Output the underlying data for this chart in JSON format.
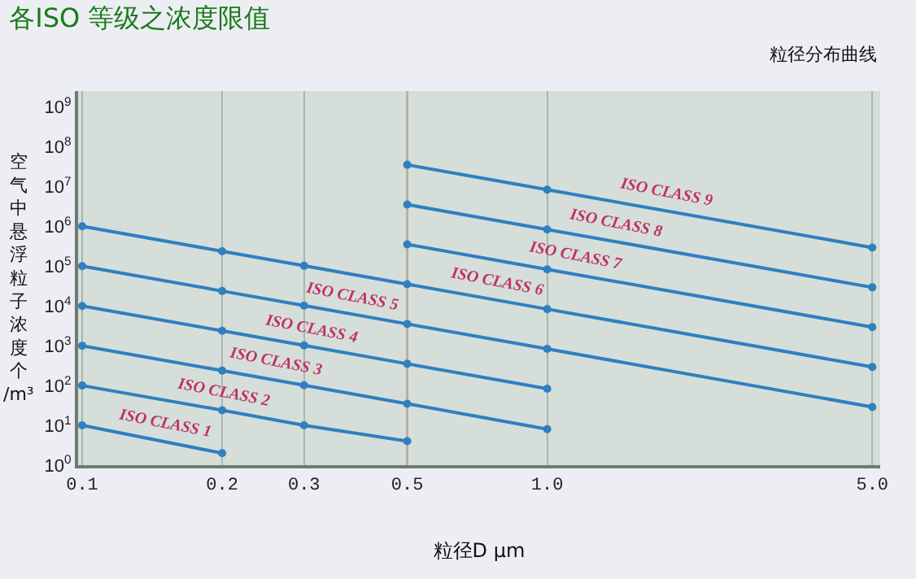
{
  "chart_data": {
    "type": "line",
    "title": "各ISO 等级之浓度限值",
    "subtitle": "粒径分布曲线",
    "xlabel": "粒径D μm",
    "ylabel": "空气中悬浮粒子浓度个/m³",
    "log": "xy",
    "grid": "x",
    "marker": "circle",
    "line_style": "solid",
    "xlim": [
      0.098,
      5.2
    ],
    "xticks": [
      0.1,
      0.2,
      0.3,
      0.5,
      {
        "value": 1,
        "label": "1.0"
      },
      {
        "value": 5,
        "label": "5.0"
      }
    ],
    "ylim": [
      1,
      2500000000
    ],
    "yticks": [
      {
        "value": 1,
        "label": "10$^{0}$"
      },
      {
        "value": 10,
        "label": "10$^{1}$"
      },
      {
        "value": 100,
        "label": "10$^{2}$"
      },
      {
        "value": 1000,
        "label": "10$^{3}$"
      },
      {
        "value": 10000,
        "label": "10$^{4}$"
      },
      {
        "value": 100000,
        "label": "10$^{5}$"
      },
      {
        "value": 1000000,
        "label": "10$^{6}$"
      },
      {
        "value": 10000000,
        "label": "10$^{7}$"
      },
      {
        "value": 100000000,
        "label": "10$^{8}$"
      },
      {
        "value": 1000000000,
        "label": "10$^{9}$"
      }
    ],
    "ref_lines": [
      {
        "axis": "x",
        "value": 0.5,
        "label": null,
        "color": "#d08a50",
        "line_style": "solid"
      }
    ],
    "series": [
      {
        "name": "ISO CLASS 1",
        "color": "#2f7fc1",
        "x": [
          0.1,
          0.2
        ],
        "values": [
          10,
          2
        ]
      },
      {
        "name": "ISO CLASS 2",
        "color": "#2f7fc1",
        "x": [
          0.1,
          0.2,
          0.3,
          0.5
        ],
        "values": [
          100,
          24,
          10,
          4
        ]
      },
      {
        "name": "ISO CLASS 3",
        "color": "#2f7fc1",
        "x": [
          0.1,
          0.2,
          0.3,
          0.5,
          1
        ],
        "values": [
          1000,
          237,
          102,
          35,
          8
        ]
      },
      {
        "name": "ISO CLASS 4",
        "color": "#2f7fc1",
        "x": [
          0.1,
          0.2,
          0.3,
          0.5,
          1
        ],
        "values": [
          10000,
          2370,
          1020,
          352,
          83
        ]
      },
      {
        "name": "ISO CLASS 5",
        "color": "#2f7fc1",
        "x": [
          0.1,
          0.2,
          0.3,
          0.5,
          1,
          5
        ],
        "values": [
          100000,
          23700,
          10200,
          3520,
          832,
          29
        ]
      },
      {
        "name": "ISO CLASS 6",
        "color": "#2f7fc1",
        "x": [
          0.1,
          0.2,
          0.3,
          0.5,
          1,
          5
        ],
        "values": [
          1000000,
          237000,
          102000,
          35200,
          8320,
          293
        ]
      },
      {
        "name": "ISO CLASS 7",
        "color": "#2f7fc1",
        "x": [
          0.5,
          1,
          5
        ],
        "values": [
          352000,
          83200,
          2930
        ]
      },
      {
        "name": "ISO CLASS 8",
        "color": "#2f7fc1",
        "x": [
          0.5,
          1,
          5
        ],
        "values": [
          3520000,
          832000,
          29300
        ]
      },
      {
        "name": "ISO CLASS 9",
        "color": "#2f7fc1",
        "x": [
          0.5,
          1,
          5
        ],
        "values": [
          35200000,
          8320000,
          293000
        ]
      }
    ]
  }
}
